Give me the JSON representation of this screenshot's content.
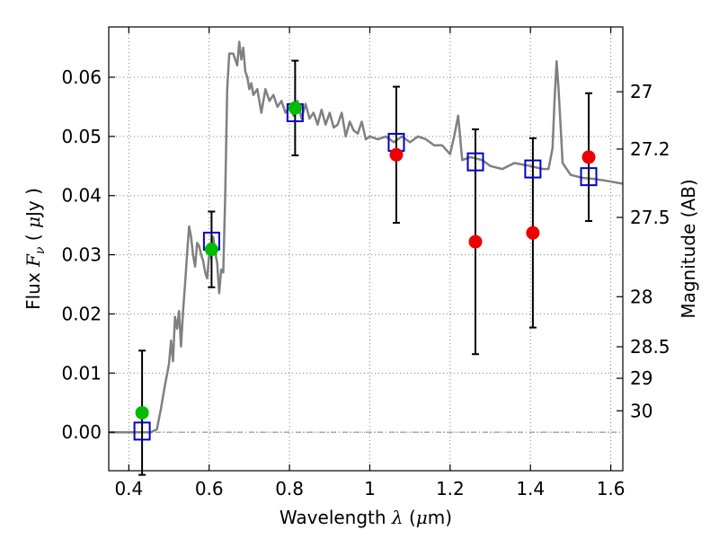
{
  "chart_data": {
    "type": "scatter",
    "title": "",
    "xlabel": {
      "prefix": "Wavelength  ",
      "symbol": "λ",
      "unit_open": " (",
      "unit_mu": "μ",
      "unit_rest": "m)"
    },
    "ylabel": {
      "prefix": "Flux  ",
      "symbol": "F",
      "subscript": "ν",
      "unit_open": "  (  ",
      "unit_mu": "μ",
      "unit_rest": "Jy  )"
    },
    "y2label": "Magnitude (AB)",
    "xlim": [
      0.35,
      1.63
    ],
    "ylim": [
      -0.0065,
      0.0685
    ],
    "xticks": [
      {
        "value": 0.4,
        "label": "0.4"
      },
      {
        "value": 0.6,
        "label": "0.6"
      },
      {
        "value": 0.8,
        "label": "0.8"
      },
      {
        "value": 1.0,
        "label": "1"
      },
      {
        "value": 1.2,
        "label": "1.2"
      },
      {
        "value": 1.4,
        "label": "1.4"
      },
      {
        "value": 1.6,
        "label": "1.6"
      }
    ],
    "yticks": [
      {
        "value": 0.0,
        "label": "0.00"
      },
      {
        "value": 0.01,
        "label": "0.01"
      },
      {
        "value": 0.02,
        "label": "0.02"
      },
      {
        "value": 0.03,
        "label": "0.03"
      },
      {
        "value": 0.04,
        "label": "0.04"
      },
      {
        "value": 0.05,
        "label": "0.05"
      },
      {
        "value": 0.06,
        "label": "0.06"
      }
    ],
    "y2ticks": [
      {
        "value": 27.0,
        "label": "27"
      },
      {
        "value": 27.2,
        "label": "27.2"
      },
      {
        "value": 27.5,
        "label": "27.5"
      },
      {
        "value": 28.0,
        "label": "28"
      },
      {
        "value": 28.5,
        "label": "28.5"
      },
      {
        "value": 29.0,
        "label": "29"
      },
      {
        "value": 30.0,
        "label": "30"
      }
    ],
    "grid": true,
    "zero_line": true,
    "colors": {
      "model": "#808080",
      "model_photometry": "#0000cc",
      "detection": "#00bb00",
      "non_detection": "#ee0000",
      "errorbar": "#000000",
      "grid": "#808080"
    },
    "model_spectrum": {
      "x": [
        0.35,
        0.455,
        0.47,
        0.48,
        0.49,
        0.5,
        0.505,
        0.51,
        0.515,
        0.52,
        0.525,
        0.53,
        0.535,
        0.54,
        0.545,
        0.55,
        0.555,
        0.56,
        0.565,
        0.57,
        0.575,
        0.58,
        0.585,
        0.59,
        0.595,
        0.6,
        0.605,
        0.61,
        0.615,
        0.62,
        0.625,
        0.63,
        0.635,
        0.64,
        0.645,
        0.65,
        0.66,
        0.67,
        0.675,
        0.68,
        0.685,
        0.69,
        0.695,
        0.7,
        0.705,
        0.71,
        0.72,
        0.73,
        0.74,
        0.75,
        0.76,
        0.77,
        0.78,
        0.79,
        0.8,
        0.81,
        0.82,
        0.83,
        0.84,
        0.85,
        0.86,
        0.87,
        0.88,
        0.89,
        0.9,
        0.91,
        0.92,
        0.93,
        0.94,
        0.95,
        0.96,
        0.97,
        0.98,
        0.99,
        1.0,
        1.02,
        1.04,
        1.06,
        1.08,
        1.1,
        1.12,
        1.14,
        1.16,
        1.18,
        1.2,
        1.21,
        1.22,
        1.23,
        1.25,
        1.28,
        1.3,
        1.33,
        1.36,
        1.4,
        1.43,
        1.445,
        1.455,
        1.46,
        1.465,
        1.47,
        1.48,
        1.5,
        1.53,
        1.56,
        1.59,
        1.63
      ],
      "y": [
        0.0,
        0.0,
        0.0005,
        0.004,
        0.008,
        0.0115,
        0.0155,
        0.012,
        0.0195,
        0.0175,
        0.0205,
        0.0145,
        0.0205,
        0.025,
        0.03,
        0.0348,
        0.033,
        0.03,
        0.028,
        0.032,
        0.0315,
        0.03,
        0.029,
        0.027,
        0.026,
        0.03,
        0.0295,
        0.033,
        0.0305,
        0.0285,
        0.0235,
        0.0275,
        0.027,
        0.04,
        0.058,
        0.064,
        0.064,
        0.062,
        0.066,
        0.063,
        0.065,
        0.061,
        0.06,
        0.058,
        0.059,
        0.057,
        0.058,
        0.054,
        0.058,
        0.056,
        0.057,
        0.055,
        0.056,
        0.054,
        0.055,
        0.0535,
        0.056,
        0.053,
        0.0555,
        0.053,
        0.054,
        0.052,
        0.0545,
        0.052,
        0.054,
        0.0515,
        0.052,
        0.054,
        0.05,
        0.0525,
        0.051,
        0.0505,
        0.0525,
        0.0495,
        0.05,
        0.0495,
        0.05,
        0.049,
        0.05,
        0.049,
        0.05,
        0.0495,
        0.0485,
        0.0485,
        0.047,
        0.05,
        0.0535,
        0.046,
        0.0465,
        0.046,
        0.045,
        0.0445,
        0.0455,
        0.045,
        0.0445,
        0.0445,
        0.048,
        0.056,
        0.0627,
        0.058,
        0.0455,
        0.0435,
        0.043,
        0.0428,
        0.0425,
        0.042
      ]
    },
    "model_photometry": {
      "name": "model",
      "x": [
        0.433,
        0.606,
        0.814,
        1.066,
        1.263,
        1.406,
        1.545
      ],
      "y": [
        0.0002,
        0.0323,
        0.054,
        0.049,
        0.0457,
        0.0445,
        0.0432
      ]
    },
    "observed": {
      "x": [
        0.433,
        0.606,
        0.814,
        1.066,
        1.263,
        1.406,
        1.545
      ],
      "y": [
        0.0033,
        0.0309,
        0.0548,
        0.0469,
        0.0322,
        0.0337,
        0.0465
      ],
      "yerr_low": [
        0.0105,
        0.0064,
        0.008,
        0.0115,
        0.019,
        0.016,
        0.0108
      ],
      "yerr_high": [
        0.0105,
        0.0064,
        0.008,
        0.0115,
        0.019,
        0.016,
        0.0108
      ],
      "status": [
        "detected",
        "detected",
        "detected",
        "non-detected",
        "non-detected",
        "non-detected",
        "non-detected"
      ]
    }
  }
}
